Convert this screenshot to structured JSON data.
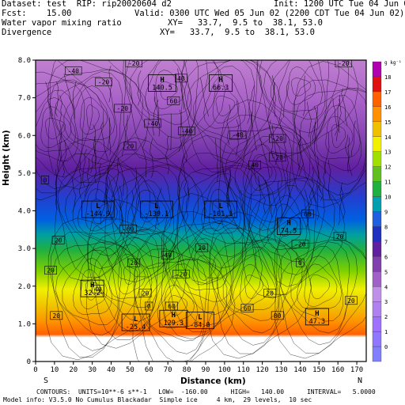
{
  "header": {
    "dataset": "Dataset: test  RIP: rip20020604 d2",
    "init": "Init: 1200 UTC Tue 04 Jun 02",
    "fcst": "Fcst:    15.00",
    "valid": "Valid: 0300 UTC Wed 05 Jun 02 (2200 CDT Tue 04 Jun 02)",
    "field1": "Water vapor mixing ratio",
    "xy1": "XY=   33.7,  9.5 to  38.1, 53.0",
    "field2": "Divergence",
    "xy2": "XY=   33.7,  9.5 to  38.1, 53.0"
  },
  "footer": {
    "left_end": "S",
    "right_end": "N",
    "contours": "CONTOURS:  UNITS=10**-6 s**-1   LOW=  -160.00      HIGH=   140.00      INTERVAL=   5.0000",
    "model_info": "Model info: V3.5.0 No Cumulus Blackadar  Simple ice     4 km,  29 levels,  10 sec"
  },
  "colors": {
    "bands": [
      "#8080ff",
      "#a070ff",
      "#c080d0",
      "#b060c0",
      "#9040b0",
      "#7020a0",
      "#3030c0",
      "#2050e0",
      "#00a0a0",
      "#20b040",
      "#60c020",
      "#a0e000",
      "#f0f000",
      "#f0c000",
      "#ff9000",
      "#ff6000",
      "#e01010",
      "#b000b0",
      "#c060e0",
      "#d090f0"
    ]
  },
  "chart_data": {
    "type": "heatmap",
    "xlabel": "Distance (km)",
    "ylabel": "Height (km)",
    "xlim": [
      0,
      175
    ],
    "ylim": [
      0,
      8.0
    ],
    "x_ticks": [
      0,
      10,
      20,
      30,
      40,
      50,
      60,
      70,
      80,
      90,
      100,
      110,
      120,
      130,
      140,
      150,
      160,
      170
    ],
    "y_ticks": [
      0,
      1.0,
      2.0,
      3.0,
      4.0,
      5.0,
      6.0,
      7.0,
      8.0
    ],
    "colorbar": {
      "unit": "g kg-1",
      "labels": [
        0,
        1,
        2,
        3,
        4,
        5,
        6,
        7,
        8,
        9,
        10,
        11,
        12,
        13,
        14,
        15,
        16,
        17,
        18
      ],
      "top_label": "g kg⁻¹"
    },
    "highs": [
      {
        "label": "H",
        "value": "140.5",
        "x": 67,
        "y": 7.4
      },
      {
        "label": "H",
        "value": "66.3",
        "x": 98,
        "y": 7.4
      },
      {
        "label": "H",
        "value": "74.5",
        "x": 134,
        "y": 3.6
      },
      {
        "label": "H",
        "value": "32.2",
        "x": 30,
        "y": 1.95
      },
      {
        "label": "H",
        "value": "129.3",
        "x": 73,
        "y": 1.15
      },
      {
        "label": "H",
        "value": "47.3",
        "x": 149,
        "y": 1.2
      }
    ],
    "lows": [
      {
        "label": "L",
        "value": "-144.9",
        "x": 33,
        "y": 4.05
      },
      {
        "label": "L",
        "value": "-139.1",
        "x": 64,
        "y": 4.05
      },
      {
        "label": "L",
        "value": "-101.1",
        "x": 98,
        "y": 4.05
      },
      {
        "label": "L",
        "value": "-25.4",
        "x": 53,
        "y": 1.05
      },
      {
        "label": "L",
        "value": "-84.0",
        "x": 87,
        "y": 1.1
      }
    ],
    "contour_labels": [
      {
        "text": "-40",
        "x": 20,
        "y": 7.7
      },
      {
        "text": "-20",
        "x": 36,
        "y": 7.4
      },
      {
        "text": "-20",
        "x": 52,
        "y": 7.9
      },
      {
        "text": "40",
        "x": 77,
        "y": 7.5
      },
      {
        "text": "60",
        "x": 73,
        "y": 6.9
      },
      {
        "text": "-20",
        "x": 46,
        "y": 6.7
      },
      {
        "text": "-40",
        "x": 62,
        "y": 6.3
      },
      {
        "text": "-40",
        "x": 80,
        "y": 6.1
      },
      {
        "text": "-40",
        "x": 107,
        "y": 6.0
      },
      {
        "text": "-20",
        "x": 128,
        "y": 5.9
      },
      {
        "text": "40",
        "x": 116,
        "y": 5.2
      },
      {
        "text": "-20",
        "x": 163,
        "y": 7.9
      },
      {
        "text": "20",
        "x": 50,
        "y": 5.7
      },
      {
        "text": "-20",
        "x": 128,
        "y": 5.4
      },
      {
        "text": "0",
        "x": 5,
        "y": 4.8
      },
      {
        "text": "20",
        "x": 12,
        "y": 3.2
      },
      {
        "text": "-60",
        "x": 49,
        "y": 3.5
      },
      {
        "text": "-20",
        "x": 140,
        "y": 3.1
      },
      {
        "text": "0",
        "x": 140,
        "y": 2.6
      },
      {
        "text": "20",
        "x": 8,
        "y": 2.4
      },
      {
        "text": "40",
        "x": 70,
        "y": 2.8
      },
      {
        "text": "20",
        "x": 52,
        "y": 2.6
      },
      {
        "text": "-20",
        "x": 77,
        "y": 2.3
      },
      {
        "text": "20",
        "x": 58,
        "y": 1.8
      },
      {
        "text": "40",
        "x": 33,
        "y": 1.9
      },
      {
        "text": "20",
        "x": 124,
        "y": 1.8
      },
      {
        "text": "60",
        "x": 112,
        "y": 1.4
      },
      {
        "text": "0",
        "x": 60,
        "y": 1.45
      },
      {
        "text": "60",
        "x": 72,
        "y": 1.45
      },
      {
        "text": "20",
        "x": 11,
        "y": 1.2
      },
      {
        "text": "80",
        "x": 128,
        "y": 1.2
      },
      {
        "text": "20",
        "x": 167,
        "y": 1.6
      },
      {
        "text": "20",
        "x": 88,
        "y": 3.0
      },
      {
        "text": "60",
        "x": 144,
        "y": 3.9
      },
      {
        "text": "20",
        "x": 161,
        "y": 3.3
      }
    ]
  }
}
